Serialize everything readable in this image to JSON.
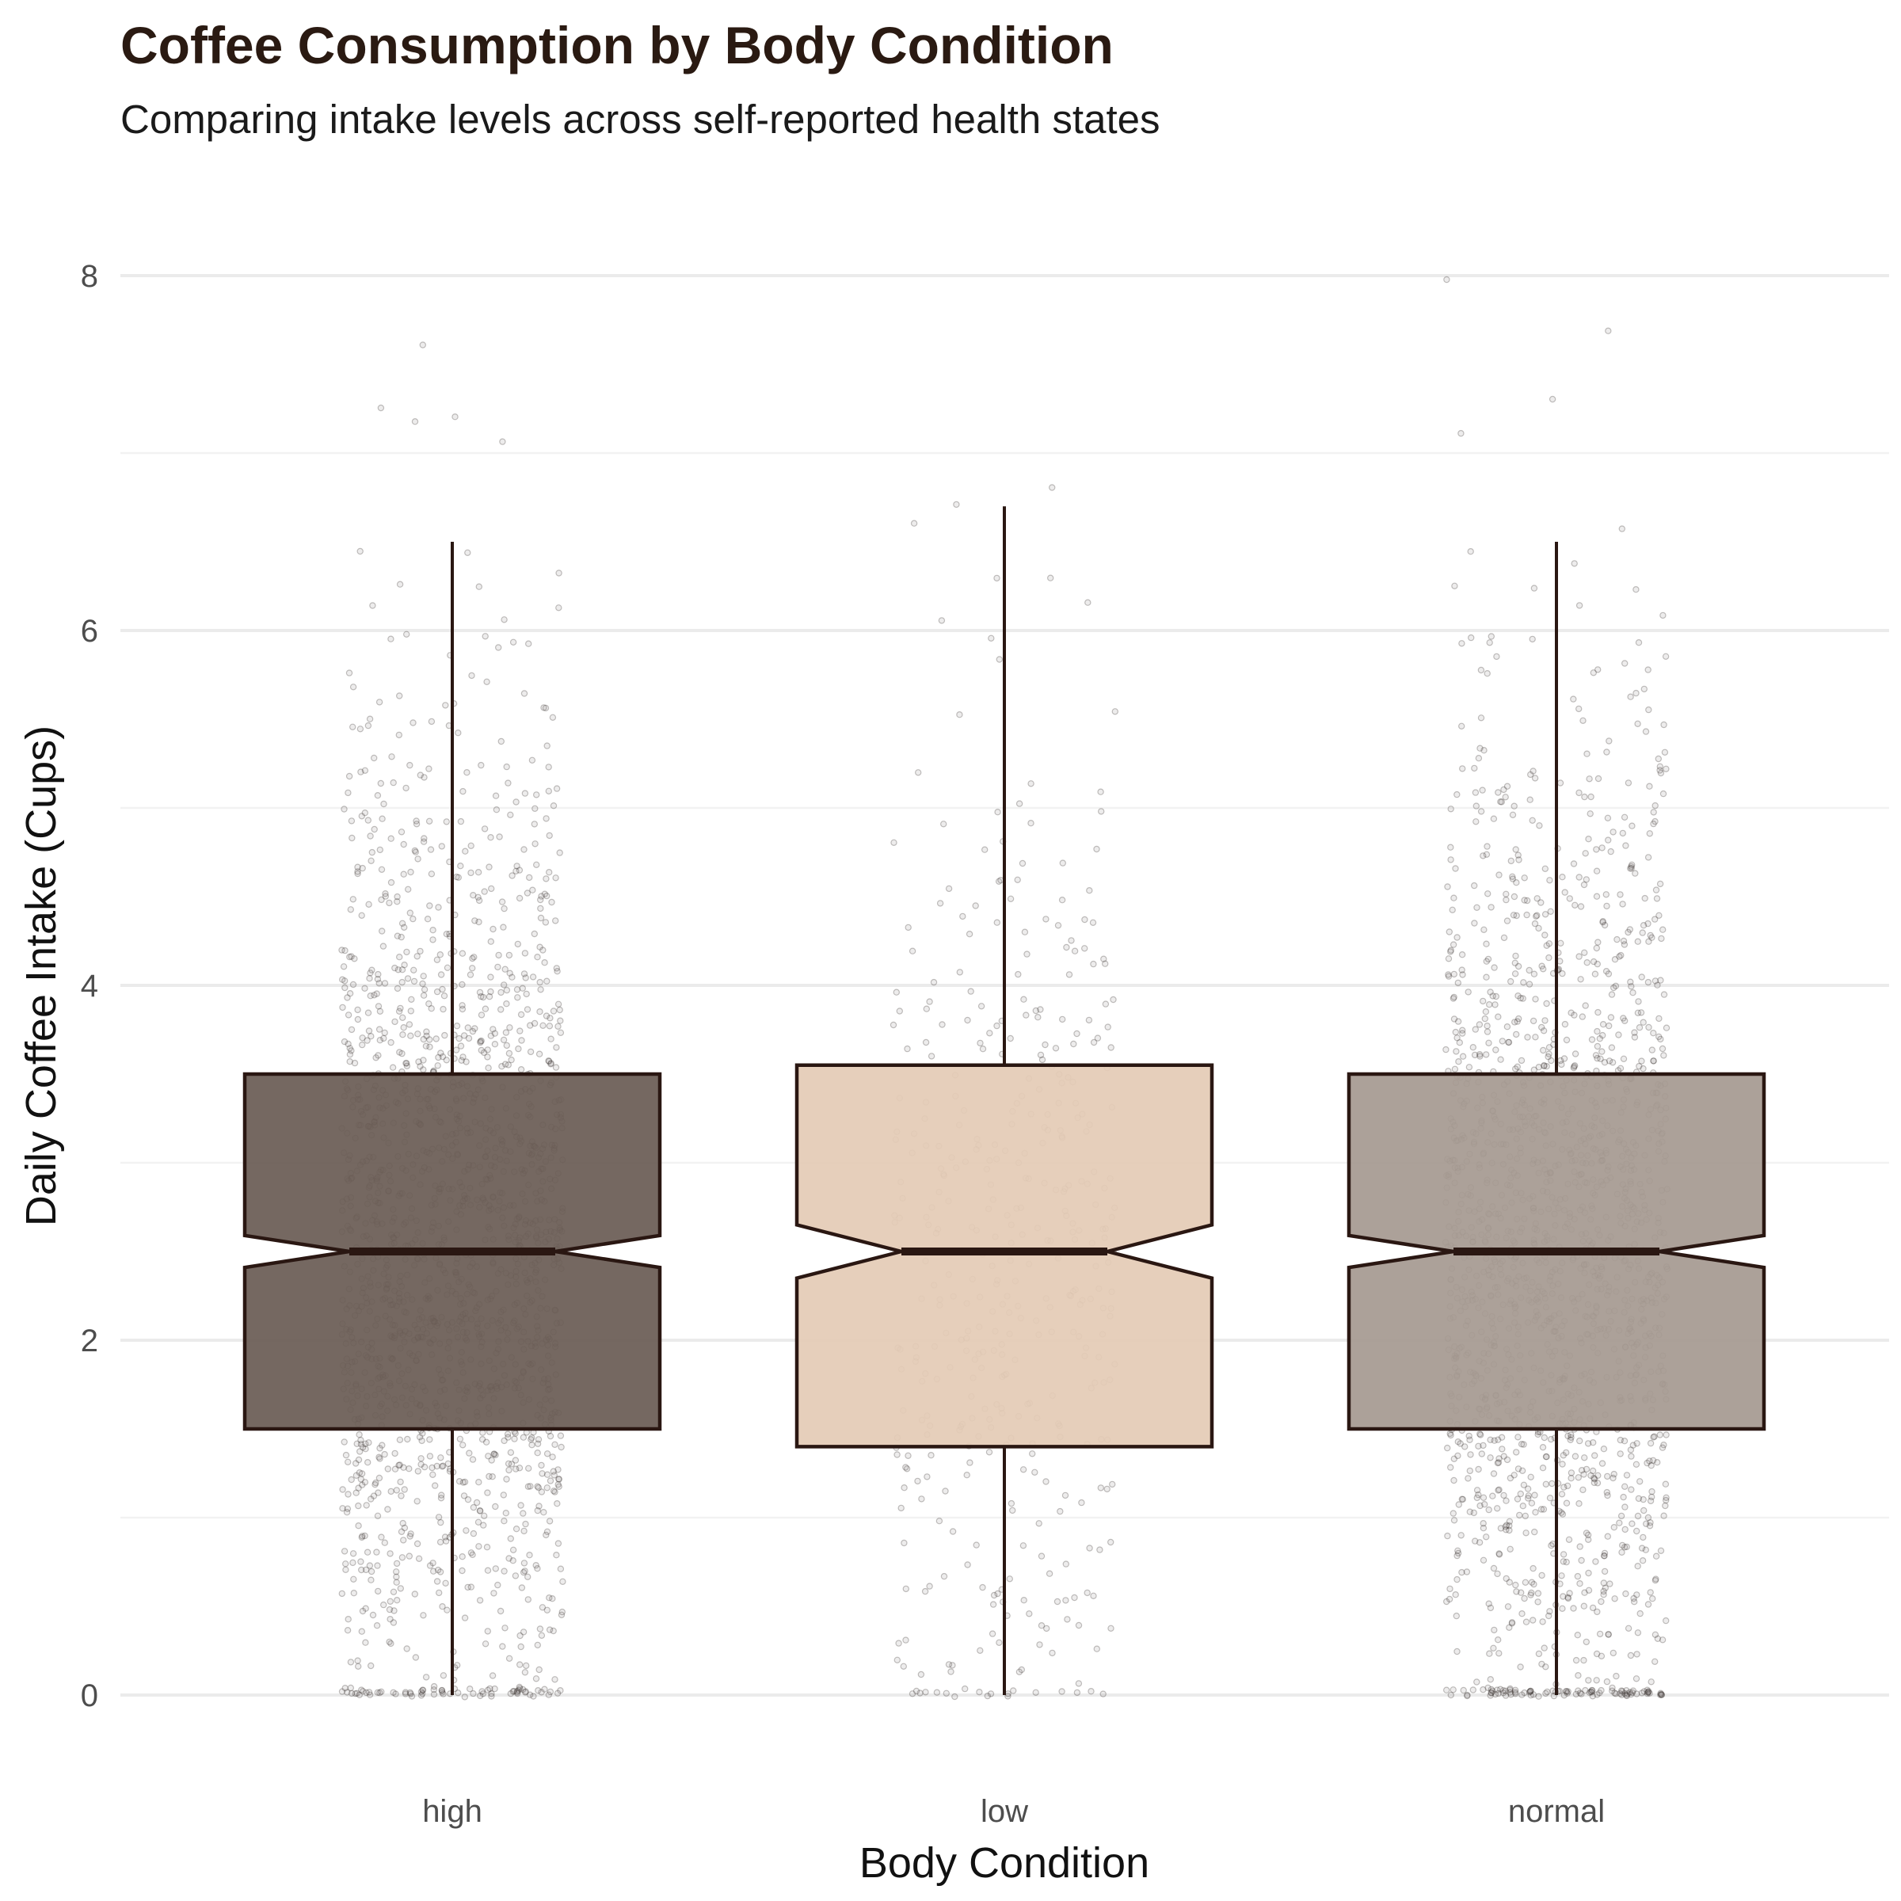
{
  "chart_data": {
    "type": "boxplot",
    "title": "Coffee Consumption by Body Condition",
    "subtitle": "Comparing intake levels across self-reported health states",
    "xlabel": "Body Condition",
    "ylabel": "Daily Coffee Intake (Cups)",
    "ylim": [
      -0.45,
      8.5
    ],
    "yticks": [
      0,
      2,
      4,
      6,
      8
    ],
    "grid": true,
    "notched": true,
    "jitter_points": true,
    "categories": [
      "high",
      "low",
      "normal"
    ],
    "series": [
      {
        "category": "high",
        "q1": 1.5,
        "median": 2.5,
        "q3": 3.5,
        "whisker_low": 0.0,
        "whisker_high": 6.5,
        "notch_low": 2.41,
        "notch_high": 2.59,
        "max_point": 7.85,
        "color": "#6b5d55",
        "point_density": 1.0
      },
      {
        "category": "low",
        "q1": 1.4,
        "median": 2.5,
        "q3": 3.55,
        "whisker_low": 0.0,
        "whisker_high": 6.7,
        "notch_low": 2.35,
        "notch_high": 2.65,
        "max_point": 6.9,
        "color": "#e4cbb6",
        "point_density": 0.25
      },
      {
        "category": "normal",
        "q1": 1.5,
        "median": 2.5,
        "q3": 3.5,
        "whisker_low": 0.0,
        "whisker_high": 6.5,
        "notch_low": 2.41,
        "notch_high": 2.59,
        "max_point": 8.2,
        "color": "#a69a91",
        "point_density": 1.0
      }
    ]
  }
}
